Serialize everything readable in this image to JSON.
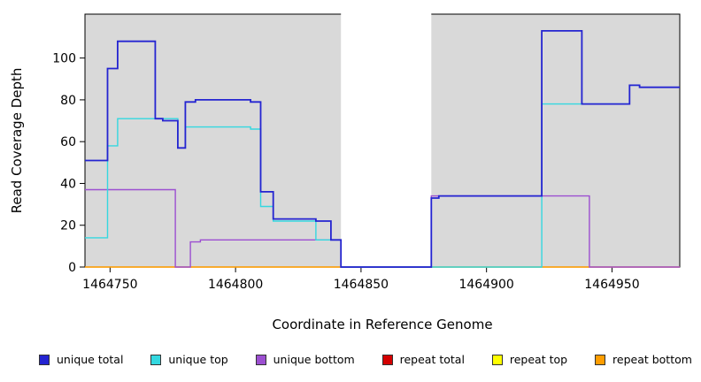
{
  "figure": {
    "x_axis_title": "Coordinate in Reference Genome",
    "y_axis_title": "Read Coverage Depth"
  },
  "chart_data": {
    "type": "line",
    "subtype": "step-coverage-plot",
    "title": "",
    "xlabel": "Coordinate in Reference Genome",
    "ylabel": "Read Coverage Depth",
    "xlim": [
      1464740,
      1464977
    ],
    "ylim": [
      0,
      121
    ],
    "x_ticks": [
      1464750,
      1464800,
      1464850,
      1464900,
      1464950
    ],
    "y_ticks": [
      0,
      20,
      40,
      60,
      80,
      100
    ],
    "grid": false,
    "panel_background": "#d9d9d9",
    "gap_region": {
      "start": 1464842,
      "end": 1464878,
      "color": "#ffffff"
    },
    "series": [
      {
        "name": "repeat total",
        "color": "#d40000",
        "width": 1.2,
        "points": [
          [
            1464740,
            0
          ],
          [
            1464977,
            0
          ]
        ]
      },
      {
        "name": "repeat top",
        "color": "#ffff00",
        "width": 1.2,
        "points": [
          [
            1464740,
            0
          ],
          [
            1464977,
            0
          ]
        ]
      },
      {
        "name": "repeat bottom",
        "color": "#ff9d00",
        "width": 1.2,
        "points": [
          [
            1464740,
            0
          ],
          [
            1464977,
            0
          ]
        ]
      },
      {
        "name": "unique bottom",
        "color": "#9c4fd1",
        "width": 1.4,
        "points": [
          [
            1464740,
            37
          ],
          [
            1464776,
            0
          ],
          [
            1464782,
            12
          ],
          [
            1464786,
            13
          ],
          [
            1464842,
            0
          ],
          [
            1464878,
            34
          ],
          [
            1464941,
            0
          ],
          [
            1464977,
            0
          ]
        ]
      },
      {
        "name": "unique top",
        "color": "#34d8e0",
        "width": 1.4,
        "points": [
          [
            1464740,
            14
          ],
          [
            1464749,
            58
          ],
          [
            1464753,
            71
          ],
          [
            1464777,
            57
          ],
          [
            1464780,
            67
          ],
          [
            1464806,
            66
          ],
          [
            1464810,
            29
          ],
          [
            1464815,
            22
          ],
          [
            1464832,
            13
          ],
          [
            1464842,
            0
          ],
          [
            1464878,
            0
          ],
          [
            1464922,
            78
          ],
          [
            1464957,
            87
          ],
          [
            1464961,
            86
          ],
          [
            1464977,
            86
          ]
        ]
      },
      {
        "name": "unique total",
        "color": "#2424d1",
        "width": 1.8,
        "points": [
          [
            1464740,
            51
          ],
          [
            1464749,
            95
          ],
          [
            1464753,
            108
          ],
          [
            1464768,
            71
          ],
          [
            1464771,
            70
          ],
          [
            1464777,
            57
          ],
          [
            1464780,
            79
          ],
          [
            1464784,
            80
          ],
          [
            1464806,
            79
          ],
          [
            1464810,
            36
          ],
          [
            1464815,
            23
          ],
          [
            1464832,
            22
          ],
          [
            1464838,
            13
          ],
          [
            1464842,
            0
          ],
          [
            1464878,
            33
          ],
          [
            1464881,
            34
          ],
          [
            1464922,
            113
          ],
          [
            1464938,
            78
          ],
          [
            1464957,
            87
          ],
          [
            1464961,
            86
          ],
          [
            1464977,
            86
          ]
        ]
      }
    ],
    "legend_position": "bottom"
  },
  "legend": {
    "items": [
      {
        "label": "unique total",
        "color": "#2424d1"
      },
      {
        "label": "unique top",
        "color": "#34d8e0"
      },
      {
        "label": "unique bottom",
        "color": "#9c4fd1"
      },
      {
        "label": "repeat total",
        "color": "#d40000"
      },
      {
        "label": "repeat top",
        "color": "#ffff00"
      },
      {
        "label": "repeat bottom",
        "color": "#ff9d00"
      }
    ]
  }
}
